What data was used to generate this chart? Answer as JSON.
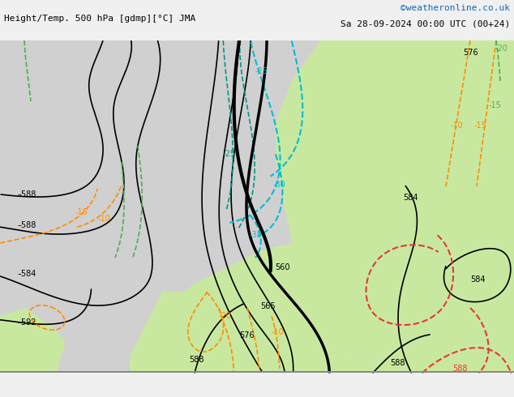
{
  "title_left": "Height/Temp. 500 hPa [gdmp][°C] JMA",
  "title_right": "Sa 28-09-2024 00:00 UTC (00+24)",
  "credit": "©weatheronline.co.uk",
  "bg_color_land_grey": "#d8d8d8",
  "bg_color_green": "#c8e8a0",
  "bg_color_white": "#ffffff",
  "contour_color_black": "#000000",
  "contour_color_orange_dashed": "#ff8c00",
  "contour_color_cyan_dashed": "#00bcd4",
  "contour_color_teal_dashed": "#009688",
  "contour_color_green_dashed": "#4caf50",
  "contour_color_red_dashed": "#e53935",
  "label_color_black": "#000000",
  "label_color_orange": "#ff8c00",
  "label_color_cyan": "#00bcd4",
  "label_color_teal": "#009688",
  "label_color_green": "#4caf50",
  "label_color_red": "#e53935",
  "bottom_bar_color": "#f0f0f0",
  "credit_color": "#1565c0"
}
